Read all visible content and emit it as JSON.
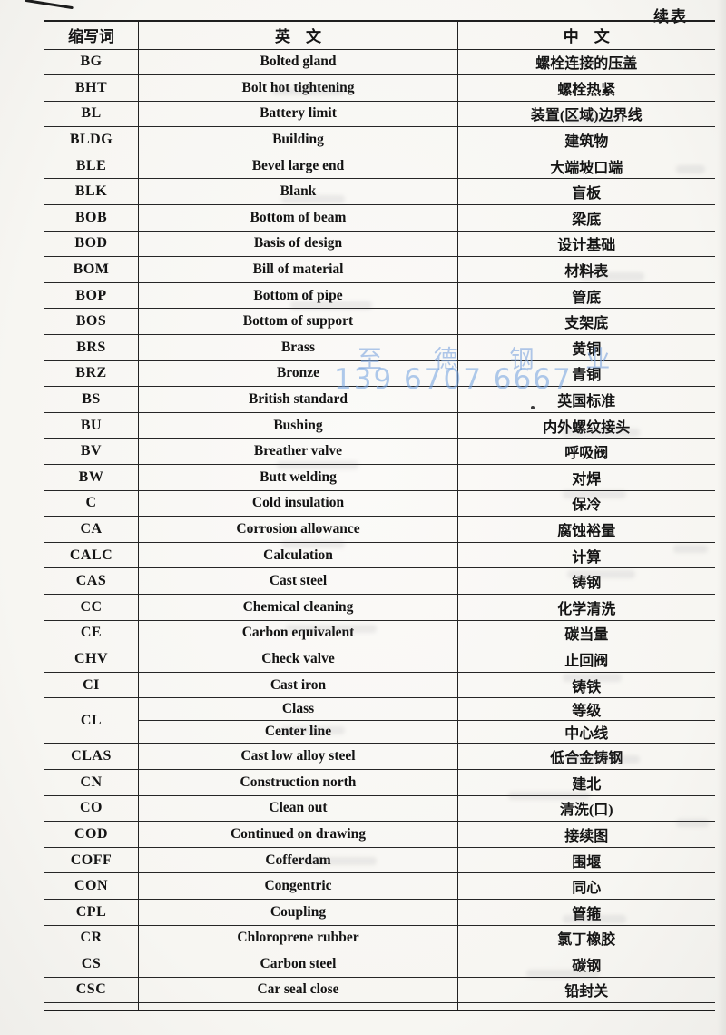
{
  "page": {
    "continued_label": "续表"
  },
  "watermark": {
    "line1": "至 德 钢 业",
    "line2": "139 6707 6667",
    "color": "#80a6de"
  },
  "table": {
    "headers": {
      "abbr": "缩写词",
      "en": "英　文",
      "cn": "中　文"
    },
    "rows": [
      {
        "abbr": "BG",
        "en": "Bolted gland",
        "cn": "螺栓连接的压盖"
      },
      {
        "abbr": "BHT",
        "en": "Bolt hot tightening",
        "cn": "螺栓热紧"
      },
      {
        "abbr": "BL",
        "en": "Battery limit",
        "cn": "装置(区域)边界线"
      },
      {
        "abbr": "BLDG",
        "en": "Building",
        "cn": "建筑物"
      },
      {
        "abbr": "BLE",
        "en": "Bevel large end",
        "cn": "大端坡口端"
      },
      {
        "abbr": "BLK",
        "en": "Blank",
        "cn": "盲板"
      },
      {
        "abbr": "BOB",
        "en": "Bottom of beam",
        "cn": "梁底"
      },
      {
        "abbr": "BOD",
        "en": "Basis of design",
        "cn": "设计基础"
      },
      {
        "abbr": "BOM",
        "en": "Bill of material",
        "cn": "材料表"
      },
      {
        "abbr": "BOP",
        "en": "Bottom of pipe",
        "cn": "管底"
      },
      {
        "abbr": "BOS",
        "en": "Bottom of support",
        "cn": "支架底"
      },
      {
        "abbr": "BRS",
        "en": "Brass",
        "cn": "黄铜"
      },
      {
        "abbr": "BRZ",
        "en": "Bronze",
        "cn": "青铜"
      },
      {
        "abbr": "BS",
        "en": "British standard",
        "cn": "英国标准"
      },
      {
        "abbr": "BU",
        "en": "Bushing",
        "cn": "内外螺纹接头"
      },
      {
        "abbr": "BV",
        "en": "Breather valve",
        "cn": "呼吸阀"
      },
      {
        "abbr": "BW",
        "en": "Butt welding",
        "cn": "对焊"
      },
      {
        "abbr": "C",
        "en": "Cold insulation",
        "cn": "保冷"
      },
      {
        "abbr": "CA",
        "en": "Corrosion allowance",
        "cn": "腐蚀裕量"
      },
      {
        "abbr": "CALC",
        "en": "Calculation",
        "cn": "计算"
      },
      {
        "abbr": "CAS",
        "en": "Cast steel",
        "cn": "铸钢"
      },
      {
        "abbr": "CC",
        "en": "Chemical cleaning",
        "cn": "化学清洗"
      },
      {
        "abbr": "CE",
        "en": "Carbon equivalent",
        "cn": "碳当量"
      },
      {
        "abbr": "CHV",
        "en": "Check valve",
        "cn": "止回阀"
      },
      {
        "abbr": "CI",
        "en": "Cast iron",
        "cn": "铸铁"
      },
      {
        "abbr": "CL",
        "sub": [
          {
            "en": "Class",
            "cn": "等级"
          },
          {
            "en": "Center line",
            "cn": "中心线"
          }
        ]
      },
      {
        "abbr": "CLAS",
        "en": "Cast low alloy steel",
        "cn": "低合金铸钢"
      },
      {
        "abbr": "CN",
        "en": "Construction north",
        "cn": "建北"
      },
      {
        "abbr": "CO",
        "en": "Clean out",
        "cn": "清洗(口)"
      },
      {
        "abbr": "COD",
        "en": "Continued on drawing",
        "cn": "接续图"
      },
      {
        "abbr": "COFF",
        "en": "Cofferdam",
        "cn": "围堰"
      },
      {
        "abbr": "CON",
        "en": "Congentric",
        "cn": "同心"
      },
      {
        "abbr": "CPL",
        "en": "Coupling",
        "cn": "管箍"
      },
      {
        "abbr": "CR",
        "en": "Chloroprene rubber",
        "cn": "氯丁橡胶"
      },
      {
        "abbr": "CS",
        "en": "Carbon steel",
        "cn": "碳钢"
      },
      {
        "abbr": "CSC",
        "en": "Car seal close",
        "cn": "铅封关"
      }
    ]
  }
}
